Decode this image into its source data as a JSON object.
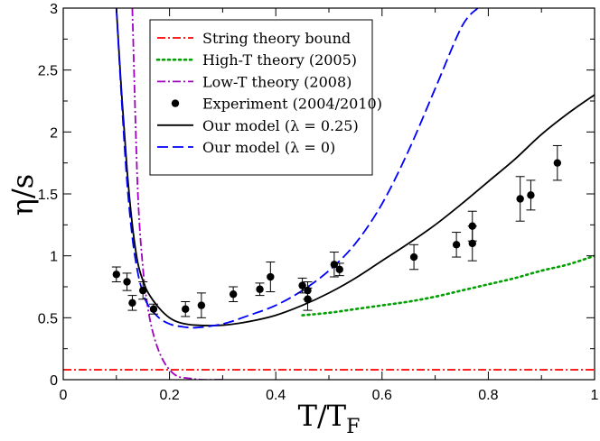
{
  "chart_data": {
    "type": "line",
    "title": "",
    "xlabel": "T/T",
    "xlabel_sub": "F",
    "ylabel": "η/s",
    "xlim": [
      0,
      1
    ],
    "ylim": [
      0,
      3
    ],
    "grid": false,
    "legend_position": "top-center",
    "x_ticks": [
      "0",
      "0.2",
      "0.4",
      "0.6",
      "0.8",
      "1"
    ],
    "y_ticks": [
      "0",
      "0.5",
      "1",
      "1.5",
      "2",
      "2.5",
      "3"
    ],
    "series": [
      {
        "name": "String theory bound",
        "style": "dash-dot",
        "color": "#ff0000",
        "x": [
          0.0,
          1.0
        ],
        "y": [
          0.08,
          0.08
        ]
      },
      {
        "name": "High-T theory (2005)",
        "style": "dotted",
        "color": "#00a000",
        "x": [
          0.45,
          0.5,
          0.55,
          0.6,
          0.65,
          0.7,
          0.75,
          0.8,
          0.85,
          0.9,
          0.95,
          1.0
        ],
        "y": [
          0.52,
          0.54,
          0.57,
          0.6,
          0.63,
          0.67,
          0.72,
          0.77,
          0.82,
          0.88,
          0.93,
          1.0
        ]
      },
      {
        "name": "Low-T theory (2008)",
        "style": "dash-dot",
        "color": "#a000c0",
        "x": [
          0.13,
          0.14,
          0.15,
          0.16,
          0.17,
          0.18,
          0.19,
          0.2,
          0.21,
          0.22,
          0.24,
          0.26,
          0.3
        ],
        "y": [
          3.0,
          1.55,
          0.9,
          0.56,
          0.36,
          0.23,
          0.14,
          0.08,
          0.04,
          0.02,
          0.01,
          0.0,
          0.0
        ]
      },
      {
        "name": "Experiment (2004/2010)",
        "style": "markers",
        "color": "#000000",
        "x": [
          0.1,
          0.12,
          0.13,
          0.15,
          0.17,
          0.23,
          0.26,
          0.32,
          0.37,
          0.39,
          0.45,
          0.46,
          0.46,
          0.51,
          0.52,
          0.66,
          0.74,
          0.77,
          0.77,
          0.86,
          0.88,
          0.93
        ],
        "y": [
          0.85,
          0.79,
          0.62,
          0.72,
          0.57,
          0.57,
          0.6,
          0.69,
          0.73,
          0.83,
          0.76,
          0.72,
          0.65,
          0.93,
          0.89,
          0.99,
          1.09,
          1.1,
          1.24,
          1.46,
          1.49,
          1.75
        ],
        "err": [
          0.06,
          0.07,
          0.06,
          0.07,
          0.04,
          0.06,
          0.1,
          0.06,
          0.05,
          0.12,
          0.06,
          0.07,
          0.09,
          0.1,
          0.05,
          0.1,
          0.1,
          0.14,
          0.12,
          0.18,
          0.12,
          0.14
        ]
      },
      {
        "name": "Our model (λ = 0.25)",
        "style": "solid",
        "color": "#000000",
        "x": [
          0.1,
          0.11,
          0.12,
          0.13,
          0.14,
          0.15,
          0.16,
          0.18,
          0.2,
          0.22,
          0.25,
          0.3,
          0.35,
          0.4,
          0.45,
          0.5,
          0.55,
          0.6,
          0.65,
          0.7,
          0.75,
          0.8,
          0.85,
          0.9,
          0.95,
          1.0
        ],
        "y": [
          3.0,
          2.3,
          1.7,
          1.25,
          0.95,
          0.8,
          0.7,
          0.58,
          0.5,
          0.46,
          0.44,
          0.44,
          0.47,
          0.52,
          0.6,
          0.7,
          0.82,
          0.96,
          1.1,
          1.25,
          1.42,
          1.6,
          1.78,
          1.98,
          2.15,
          2.3
        ]
      },
      {
        "name": "Our model (λ = 0)",
        "style": "dashed",
        "color": "#0000ff",
        "x": [
          0.1,
          0.11,
          0.12,
          0.13,
          0.14,
          0.15,
          0.16,
          0.18,
          0.2,
          0.22,
          0.25,
          0.3,
          0.35,
          0.4,
          0.45,
          0.5,
          0.55,
          0.6,
          0.65,
          0.7,
          0.75,
          0.78
        ],
        "y": [
          3.0,
          2.25,
          1.6,
          1.15,
          0.87,
          0.7,
          0.6,
          0.5,
          0.45,
          0.43,
          0.42,
          0.45,
          0.52,
          0.6,
          0.72,
          0.88,
          1.1,
          1.42,
          1.85,
          2.35,
          2.85,
          3.0
        ]
      }
    ]
  }
}
